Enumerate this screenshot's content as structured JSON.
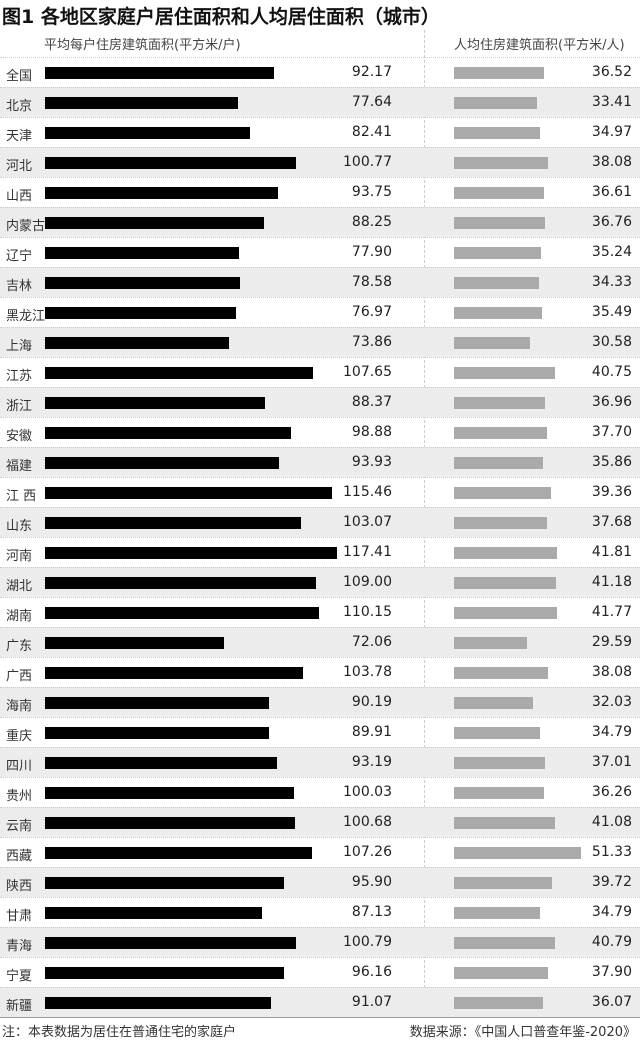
{
  "chart_data": {
    "type": "bar",
    "title": "图1 各地区家庭户居住面积和人均居住面积（城市）",
    "categories": [
      "全国",
      "北京",
      "天津",
      "河北",
      "山西",
      "内蒙古",
      "辽宁",
      "吉林",
      "黑龙江",
      "上海",
      "江苏",
      "浙江",
      "安徽",
      "福建",
      "江 西",
      "山东",
      "河南",
      "湖北",
      "湖南",
      "广东",
      "广西",
      "海南",
      "重庆",
      "四川",
      "贵州",
      "云南",
      "西藏",
      "陕西",
      "甘肃",
      "青海",
      "宁夏",
      "新疆"
    ],
    "series": [
      {
        "name": "平均每户住房建筑面积(平方米/户)",
        "color": "#000000",
        "values": [
          92.17,
          77.64,
          82.41,
          100.77,
          93.75,
          88.25,
          77.9,
          78.58,
          76.97,
          73.86,
          107.65,
          88.37,
          98.88,
          93.93,
          115.46,
          103.07,
          117.41,
          109.0,
          110.15,
          72.06,
          103.78,
          90.19,
          89.91,
          93.19,
          100.03,
          100.68,
          107.26,
          95.9,
          87.13,
          100.79,
          96.16,
          91.07
        ],
        "labels": [
          "92.17",
          "77.64",
          "82.41",
          "100.77",
          "93.75",
          "88.25",
          "77.90",
          "78.58",
          "76.97",
          "73.86",
          "107.65",
          "88.37",
          "98.88",
          "93.93",
          "115.46",
          "103.07",
          "117.41",
          "109.00",
          "110.15",
          "72.06",
          "103.78",
          "90.19",
          "89.91",
          "93.19",
          "100.03",
          "100.68",
          "107.26",
          "95.90",
          "87.13",
          "100.79",
          "96.16",
          "91.07"
        ]
      },
      {
        "name": "人均住房建筑面积(平方米/人)",
        "color": "#aaaaaa",
        "values": [
          36.52,
          33.41,
          34.97,
          38.08,
          36.61,
          36.76,
          35.24,
          34.33,
          35.49,
          30.58,
          40.75,
          36.96,
          37.7,
          35.86,
          39.36,
          37.68,
          41.81,
          41.18,
          41.77,
          29.59,
          38.08,
          32.03,
          34.79,
          37.01,
          36.26,
          41.08,
          51.33,
          39.72,
          34.79,
          40.79,
          37.9,
          36.07
        ],
        "labels": [
          "36.52",
          "33.41",
          "34.97",
          "38.08",
          "36.61",
          "36.76",
          "35.24",
          "34.33",
          "35.49",
          "30.58",
          "40.75",
          "36.96",
          "37.70",
          "35.86",
          "39.36",
          "37.68",
          "41.81",
          "41.18",
          "41.77",
          "29.59",
          "38.08",
          "32.03",
          "34.79",
          "37.01",
          "36.26",
          "41.08",
          "51.33",
          "39.72",
          "34.79",
          "40.79",
          "37.90",
          "36.07"
        ]
      }
    ],
    "orientation": "horizontal",
    "grid": false,
    "legend": "none"
  },
  "footer": {
    "note": "注：本表数据为居住在普通住宅的家庭户",
    "source": "数据来源：《中国人口普查年鉴-2020》"
  }
}
